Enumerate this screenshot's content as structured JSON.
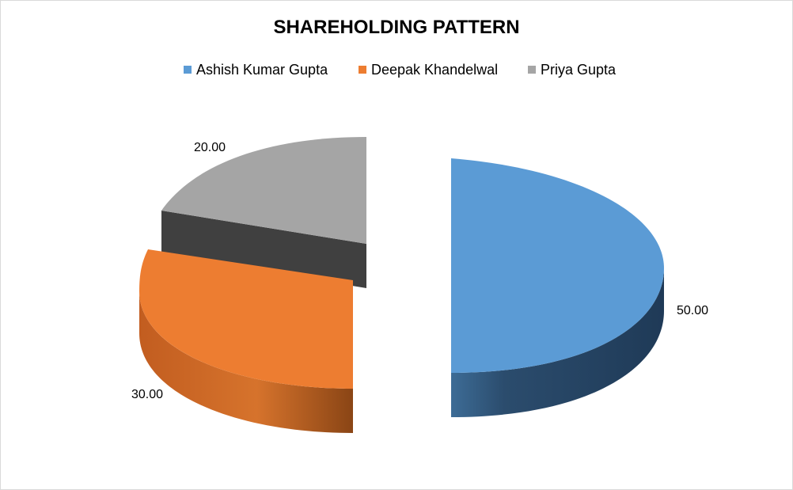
{
  "chart_data": {
    "type": "pie",
    "title": "SHAREHOLDING PATTERN",
    "categories": [
      "Ashish Kumar Gupta",
      "Deepak Khandelwal",
      "Priya Gupta"
    ],
    "values": [
      50,
      30,
      20
    ],
    "data_labels": [
      "50.00",
      "30.00",
      "20.00"
    ],
    "legend_position": "top",
    "style": "3d-exploded",
    "colors": [
      "#5B9BD5",
      "#ED7D31",
      "#A5A5A5"
    ]
  }
}
